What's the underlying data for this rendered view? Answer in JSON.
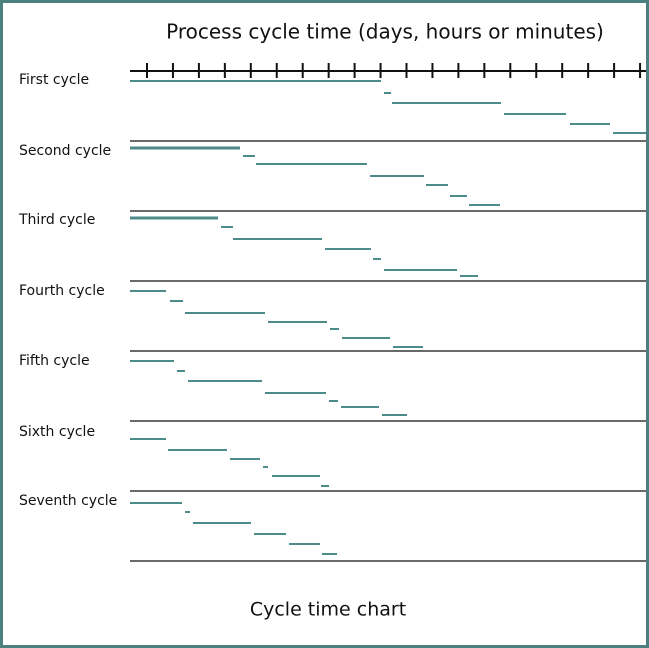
{
  "title": "Process cycle time (days, hours or minutes)",
  "rows": [
    "First cycle",
    "Second cycle",
    "Third cycle",
    "Fourth cycle",
    "Fifth cycle",
    "Sixth cycle",
    "Seventh cycle"
  ],
  "caption": "Cycle time chart"
}
